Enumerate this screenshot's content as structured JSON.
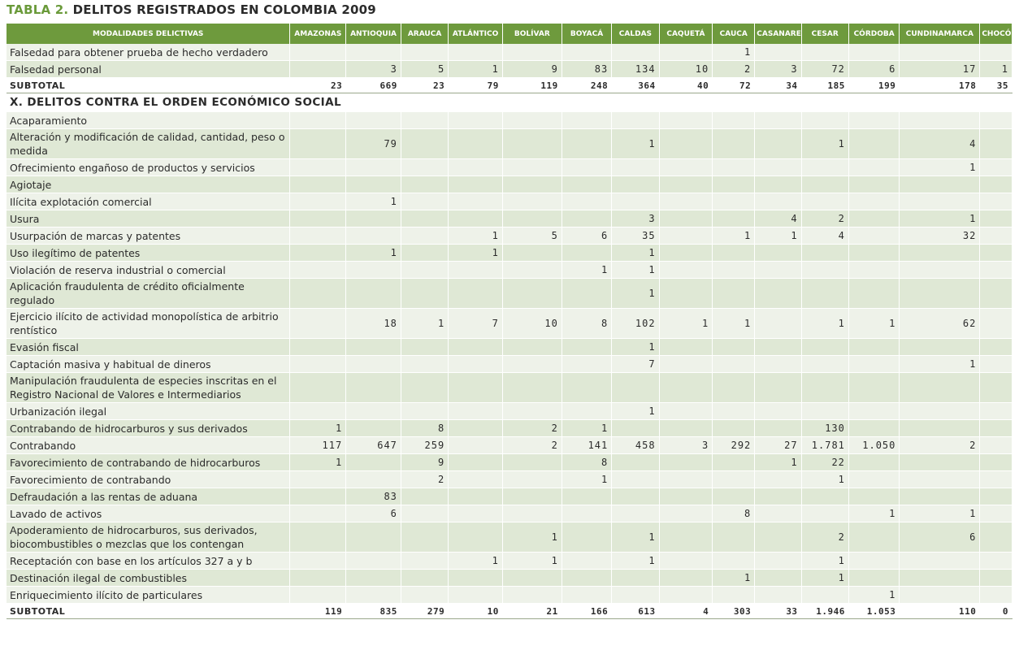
{
  "title": {
    "lead": "TABLA 2.",
    "rest": " DELITOS REGISTRADOS EN COLOMBIA 2009"
  },
  "headers": [
    "MODALIDADES DELICTIVAS",
    "AMAZONAS",
    "ANTIOQUIA",
    "ARAUCA",
    "ATLÁNTICO",
    "BOLÍVAR",
    "BOYACÁ",
    "CALDAS",
    "CAQUETÁ",
    "CAUCA",
    "CASANARE",
    "CESAR",
    "CÓRDOBA",
    "CUNDINAMARCA",
    "CHOCÓ"
  ],
  "rows": [
    {
      "kind": "data",
      "label": "Falsedad para obtener prueba de hecho verdadero",
      "values": [
        "",
        "",
        "",
        "",
        "",
        "",
        "",
        "",
        "1",
        "",
        "",
        "",
        "",
        ""
      ]
    },
    {
      "kind": "data",
      "label": "Falsedad personal",
      "values": [
        "",
        "3",
        "5",
        "1",
        "9",
        "83",
        "134",
        "10",
        "2",
        "3",
        "72",
        "6",
        "17",
        "1"
      ]
    },
    {
      "kind": "subtotal",
      "label": "SUBTOTAL",
      "values": [
        "23",
        "669",
        "23",
        "79",
        "119",
        "248",
        "364",
        "40",
        "72",
        "34",
        "185",
        "199",
        "178",
        "35"
      ]
    },
    {
      "kind": "section",
      "label": "X. DELITOS CONTRA EL ORDEN ECONÓMICO SOCIAL"
    },
    {
      "kind": "data",
      "label": "Acaparamiento",
      "values": [
        "",
        "",
        "",
        "",
        "",
        "",
        "",
        "",
        "",
        "",
        "",
        "",
        "",
        ""
      ]
    },
    {
      "kind": "data",
      "tall": true,
      "label": "Alteración y modificación de calidad, cantidad, peso o medida",
      "values": [
        "",
        "79",
        "",
        "",
        "",
        "",
        "1",
        "",
        "",
        "",
        "1",
        "",
        "4",
        ""
      ]
    },
    {
      "kind": "data",
      "label": "Ofrecimiento engañoso de productos y servicios",
      "values": [
        "",
        "",
        "",
        "",
        "",
        "",
        "",
        "",
        "",
        "",
        "",
        "",
        "1",
        ""
      ]
    },
    {
      "kind": "data",
      "label": "Agiotaje",
      "values": [
        "",
        "",
        "",
        "",
        "",
        "",
        "",
        "",
        "",
        "",
        "",
        "",
        "",
        ""
      ]
    },
    {
      "kind": "data",
      "label": "Ilícita explotación comercial",
      "values": [
        "",
        "1",
        "",
        "",
        "",
        "",
        "",
        "",
        "",
        "",
        "",
        "",
        "",
        ""
      ]
    },
    {
      "kind": "data",
      "label": "Usura",
      "values": [
        "",
        "",
        "",
        "",
        "",
        "",
        "3",
        "",
        "",
        "4",
        "2",
        "",
        "1",
        ""
      ]
    },
    {
      "kind": "data",
      "label": "Usurpación de marcas y patentes",
      "values": [
        "",
        "",
        "",
        "1",
        "5",
        "6",
        "35",
        "",
        "1",
        "1",
        "4",
        "",
        "32",
        ""
      ]
    },
    {
      "kind": "data",
      "label": "Uso ilegítimo de patentes",
      "values": [
        "",
        "1",
        "",
        "1",
        "",
        "",
        "1",
        "",
        "",
        "",
        "",
        "",
        "",
        ""
      ]
    },
    {
      "kind": "data",
      "label": "Violación de reserva industrial o comercial",
      "values": [
        "",
        "",
        "",
        "",
        "",
        "1",
        "1",
        "",
        "",
        "",
        "",
        "",
        "",
        ""
      ]
    },
    {
      "kind": "data",
      "tall": true,
      "label": "Aplicación fraudulenta de crédito oficialmente regulado",
      "values": [
        "",
        "",
        "",
        "",
        "",
        "",
        "1",
        "",
        "",
        "",
        "",
        "",
        "",
        ""
      ]
    },
    {
      "kind": "data",
      "tall": true,
      "label": "Ejercicio ilícito de actividad monopolística de arbitrio rentístico",
      "values": [
        "",
        "18",
        "1",
        "7",
        "10",
        "8",
        "102",
        "1",
        "1",
        "",
        "1",
        "1",
        "62",
        ""
      ]
    },
    {
      "kind": "data",
      "label": "Evasión fiscal",
      "values": [
        "",
        "",
        "",
        "",
        "",
        "",
        "1",
        "",
        "",
        "",
        "",
        "",
        "",
        ""
      ]
    },
    {
      "kind": "data",
      "label": "Captación masiva y habitual de dineros",
      "values": [
        "",
        "",
        "",
        "",
        "",
        "",
        "7",
        "",
        "",
        "",
        "",
        "",
        "1",
        ""
      ]
    },
    {
      "kind": "data",
      "tall": true,
      "label": "Manipulación fraudulenta de especies inscritas en el Registro Nacional de Valores e Intermediarios",
      "values": [
        "",
        "",
        "",
        "",
        "",
        "",
        "",
        "",
        "",
        "",
        "",
        "",
        "",
        ""
      ]
    },
    {
      "kind": "data",
      "label": "Urbanización ilegal",
      "values": [
        "",
        "",
        "",
        "",
        "",
        "",
        "1",
        "",
        "",
        "",
        "",
        "",
        "",
        ""
      ]
    },
    {
      "kind": "data",
      "label": "Contrabando de hidrocarburos y sus derivados",
      "values": [
        "1",
        "",
        "8",
        "",
        "2",
        "1",
        "",
        "",
        "",
        "",
        "130",
        "",
        "",
        ""
      ]
    },
    {
      "kind": "data",
      "label": "Contrabando",
      "values": [
        "117",
        "647",
        "259",
        "",
        "2",
        "141",
        "458",
        "3",
        "292",
        "27",
        "1.781",
        "1.050",
        "2",
        ""
      ]
    },
    {
      "kind": "data",
      "label": "Favorecimiento de contrabando de hidrocarburos",
      "values": [
        "1",
        "",
        "9",
        "",
        "",
        "8",
        "",
        "",
        "",
        "1",
        "22",
        "",
        "",
        ""
      ]
    },
    {
      "kind": "data",
      "label": "Favorecimiento de contrabando",
      "values": [
        "",
        "",
        "2",
        "",
        "",
        "1",
        "",
        "",
        "",
        "",
        "1",
        "",
        "",
        ""
      ]
    },
    {
      "kind": "data",
      "label": "Defraudación a las rentas de aduana",
      "values": [
        "",
        "83",
        "",
        "",
        "",
        "",
        "",
        "",
        "",
        "",
        "",
        "",
        "",
        ""
      ]
    },
    {
      "kind": "data",
      "label": "Lavado de activos",
      "values": [
        "",
        "6",
        "",
        "",
        "",
        "",
        "",
        "",
        "8",
        "",
        "",
        "1",
        "1",
        ""
      ]
    },
    {
      "kind": "data",
      "tall": true,
      "label": "Apoderamiento de hidrocarburos, sus derivados, biocombustibles o mezclas que los contengan",
      "values": [
        "",
        "",
        "",
        "",
        "1",
        "",
        "1",
        "",
        "",
        "",
        "2",
        "",
        "6",
        ""
      ]
    },
    {
      "kind": "data",
      "label": "Receptación con base en los artículos 327 a y b",
      "values": [
        "",
        "",
        "",
        "1",
        "1",
        "",
        "1",
        "",
        "",
        "",
        "1",
        "",
        "",
        ""
      ]
    },
    {
      "kind": "data",
      "label": "Destinación ilegal de combustibles",
      "values": [
        "",
        "",
        "",
        "",
        "",
        "",
        "",
        "",
        "1",
        "",
        "1",
        "",
        "",
        ""
      ]
    },
    {
      "kind": "data",
      "label": "Enriquecimiento ilícito de particulares",
      "values": [
        "",
        "",
        "",
        "",
        "",
        "",
        "",
        "",
        "",
        "",
        "",
        "1",
        "",
        ""
      ]
    },
    {
      "kind": "subtotal",
      "label": "SUBTOTAL",
      "values": [
        "119",
        "835",
        "279",
        "10",
        "21",
        "166",
        "613",
        "4",
        "303",
        "33",
        "1.946",
        "1.053",
        "110",
        "0"
      ]
    }
  ]
}
